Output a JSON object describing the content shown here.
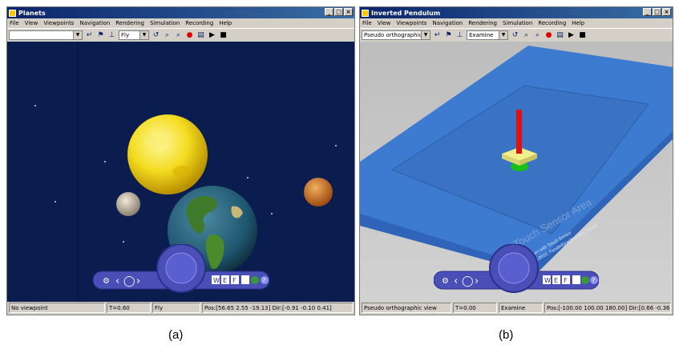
{
  "windows": [
    {
      "title": "Planets",
      "menu": [
        "File",
        "View",
        "Viewpoints",
        "Navigation",
        "Rendering",
        "Simulation",
        "Recording",
        "Help"
      ],
      "toolbar": {
        "viewpoint_value": "",
        "mode_value": "Fly"
      },
      "status": {
        "viewpoint": "No viewpoint",
        "time": "T=0.60",
        "mode": "Fly",
        "pos": "Pos:[56.65 2.55 -19.13] Dir:[-0.91 -0.10 0.41]"
      },
      "nav_labels": {
        "w": "W",
        "e": "E",
        "f": "F",
        "help": "?"
      },
      "caption": "(a)"
    },
    {
      "title": "Inverted Pendulum",
      "menu": [
        "File",
        "View",
        "Viewpoints",
        "Navigation",
        "Rendering",
        "Simulation",
        "Recording",
        "Help"
      ],
      "toolbar": {
        "viewpoint_value": "Pseudo orthographic",
        "mode_value": "Examine"
      },
      "status": {
        "viewpoint": "Pseudo orthographic view",
        "time": "T=0.00",
        "mode": "Examine",
        "pos": "Pos:[-100.00 100.00 180.00] Dir:[0.66 -0.36 -0"
      },
      "nav_labels": {
        "w": "W",
        "e": "E",
        "f": "F",
        "help": "?"
      },
      "scene_text": {
        "area_label": "Touch Sensor Area",
        "line1": "Inverted Pendulum with Touch Sensor",
        "line2": "Copyright 1998-2010, ParallelGraphics and Tourist"
      },
      "caption": "(b)"
    }
  ],
  "window_buttons": [
    "_",
    "□",
    "×"
  ],
  "colors": {
    "titlebar": "#0a246a",
    "space": "#0b1d4e",
    "floor": "#3d7bd0",
    "nav_panel": "#4a4fb8",
    "pendulum_rod": "#e01010",
    "pendulum_base": "#f2f08a",
    "pendulum_green": "#16c016"
  }
}
